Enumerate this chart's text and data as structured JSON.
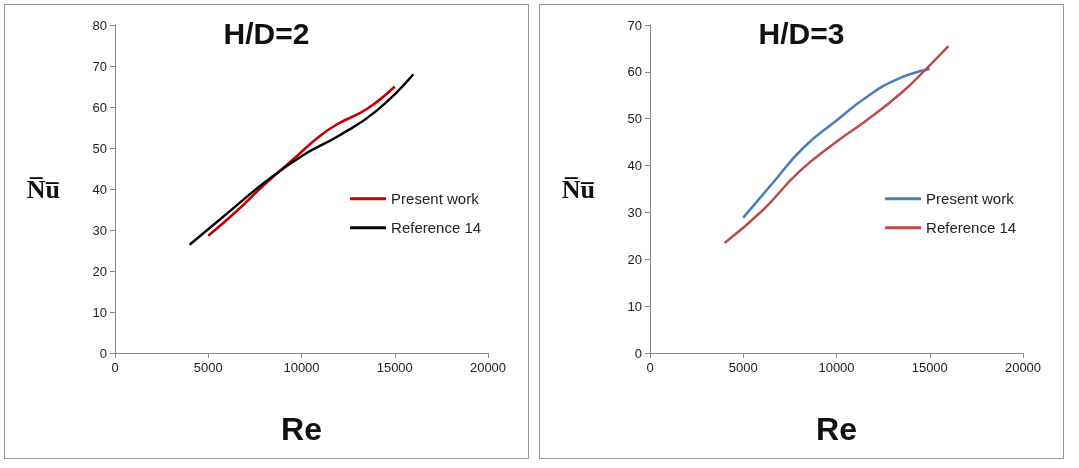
{
  "chart_data": [
    {
      "type": "line",
      "title": "H/D=2",
      "xlabel": "Re",
      "ylabel": "N̅u̅",
      "xlim": [
        0,
        20000
      ],
      "xticks": [
        0,
        5000,
        10000,
        15000,
        20000
      ],
      "ylim": [
        0,
        80
      ],
      "yticks": [
        0,
        10,
        20,
        30,
        40,
        50,
        60,
        70,
        80
      ],
      "grid": false,
      "legend": "right",
      "marker": "none",
      "line_style": "solid",
      "series": [
        {
          "name": "Present work",
          "color": "#c00000",
          "x": [
            5000,
            6500,
            8000,
            9500,
            11000,
            12000,
            13500,
            15000
          ],
          "values": [
            28.6,
            34.5,
            41,
            47,
            53,
            56,
            59.5,
            65
          ]
        },
        {
          "name": "Reference 14",
          "color": "#000000",
          "x": [
            4000,
            6000,
            8000,
            10000,
            12000,
            14000,
            16000
          ],
          "values": [
            26.4,
            34,
            41.5,
            48,
            53,
            59,
            68
          ]
        }
      ]
    },
    {
      "type": "line",
      "title": "H/D=3",
      "xlabel": "Re",
      "ylabel": "N̅u̅",
      "xlim": [
        0,
        20000
      ],
      "xticks": [
        0,
        5000,
        10000,
        15000,
        20000
      ],
      "ylim": [
        0,
        70
      ],
      "yticks": [
        0,
        10,
        20,
        30,
        40,
        50,
        60,
        70
      ],
      "grid": false,
      "legend": "right",
      "marker": "none",
      "line_style": "solid",
      "series": [
        {
          "name": "Present work",
          "color": "#4a7ebb",
          "x": [
            5000,
            6500,
            8200,
            10000,
            11600,
            13300,
            15000
          ],
          "values": [
            28.9,
            35.9,
            43.7,
            49.6,
            54.6,
            58.5,
            60.6
          ]
        },
        {
          "name": "Reference 14",
          "color": "#be4b48",
          "x": [
            4000,
            6000,
            8000,
            10000,
            11600,
            13500,
            14800,
            16000
          ],
          "values": [
            23.5,
            30.3,
            38.7,
            45.1,
            49.6,
            55.6,
            60.6,
            65.5
          ]
        }
      ]
    }
  ]
}
